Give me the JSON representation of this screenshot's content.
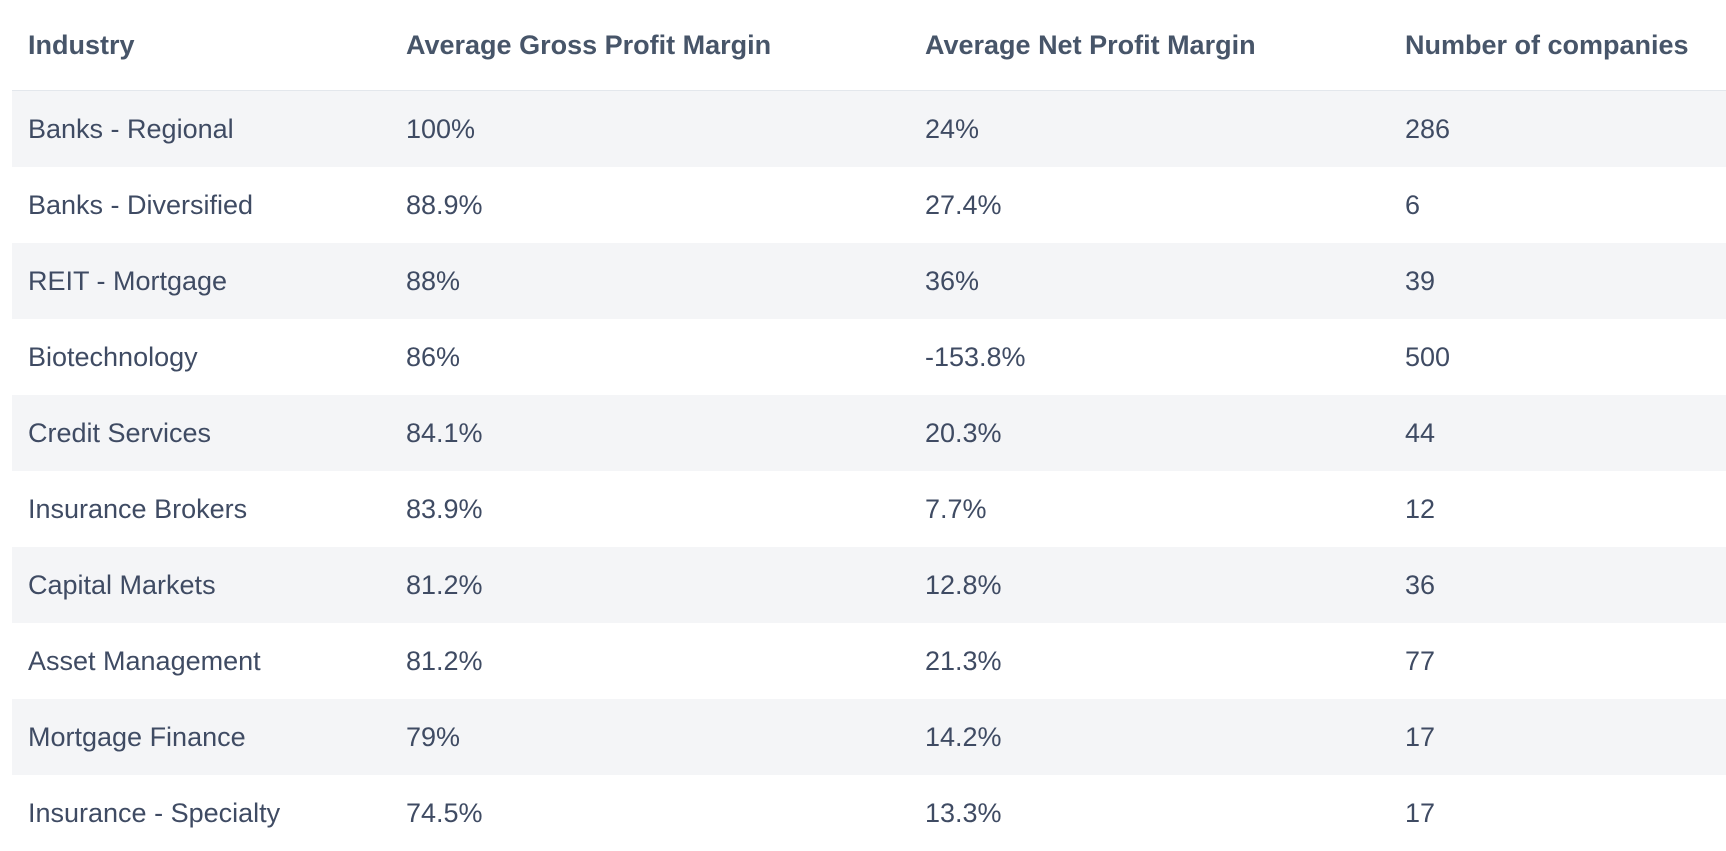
{
  "table": {
    "headers": [
      "Industry",
      "Average Gross Profit Margin",
      "Average Net Profit Margin",
      "Number of companies"
    ],
    "rows": [
      [
        "Banks - Regional",
        "100%",
        "24%",
        "286"
      ],
      [
        "Banks - Diversified",
        "88.9%",
        "27.4%",
        "6"
      ],
      [
        "REIT - Mortgage",
        "88%",
        "36%",
        "39"
      ],
      [
        "Biotechnology",
        "86%",
        "-153.8%",
        "500"
      ],
      [
        "Credit Services",
        "84.1%",
        "20.3%",
        "44"
      ],
      [
        "Insurance Brokers",
        "83.9%",
        "7.7%",
        "12"
      ],
      [
        "Capital Markets",
        "81.2%",
        "12.8%",
        "36"
      ],
      [
        "Asset Management",
        "81.2%",
        "21.3%",
        "77"
      ],
      [
        "Mortgage Finance",
        "79%",
        "14.2%",
        "17"
      ],
      [
        "Insurance - Specialty",
        "74.5%",
        "13.3%",
        "17"
      ]
    ]
  },
  "colors": {
    "header_text": "#475569",
    "body_text": "#3f4b63",
    "stripe": "#f4f5f7",
    "divider": "#e3e7ec"
  }
}
